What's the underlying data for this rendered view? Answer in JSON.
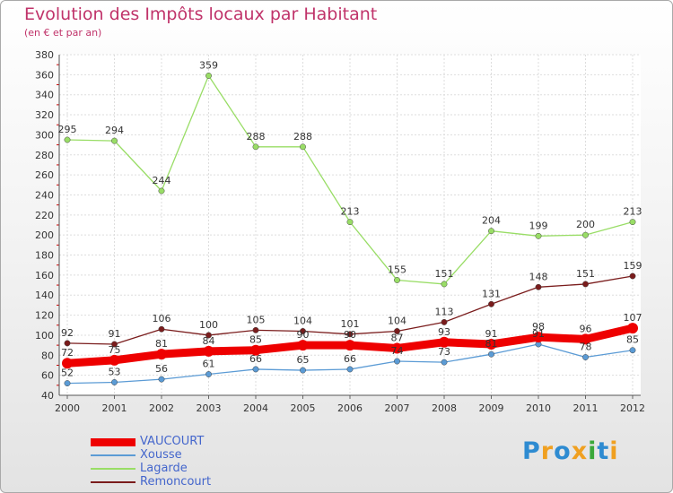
{
  "title": "Evolution des Impôts locaux par Habitant",
  "subtitle": "(en € et par an)",
  "logo": {
    "text": "Proxiti",
    "letters": [
      "P",
      "r",
      "o",
      "x",
      "i",
      "t",
      "i"
    ],
    "colors": [
      "#2e8bd1",
      "#f0a020",
      "#2e8bd1",
      "#f0a020",
      "#3aa83a",
      "#2e8bd1",
      "#f0a020"
    ]
  },
  "chart_data": {
    "type": "line",
    "title": "Evolution des Impôts locaux par Habitant",
    "subtitle": "(en € et par an)",
    "x": [
      "2000",
      "2001",
      "2002",
      "2003",
      "2004",
      "2005",
      "2006",
      "2007",
      "2008",
      "2009",
      "2010",
      "2011",
      "2012"
    ],
    "ylim": [
      40,
      380
    ],
    "yticks": [
      40,
      60,
      80,
      100,
      120,
      140,
      160,
      180,
      200,
      220,
      240,
      260,
      280,
      300,
      320,
      340,
      360,
      380
    ],
    "grid": true,
    "legend": "bottom-left",
    "series": [
      {
        "name": "VAUCOURT",
        "color": "#ee0000",
        "width": "thick",
        "values": [
          72,
          75,
          81,
          84,
          85,
          90,
          90,
          87,
          93,
          91,
          98,
          96,
          107
        ]
      },
      {
        "name": "Xousse",
        "color": "#5b9bd5",
        "width": "thin",
        "values": [
          52,
          53,
          56,
          61,
          66,
          65,
          66,
          74,
          73,
          81,
          91,
          78,
          85
        ]
      },
      {
        "name": "Lagarde",
        "color": "#99dd66",
        "width": "thin",
        "values": [
          295,
          294,
          244,
          359,
          288,
          288,
          213,
          155,
          151,
          204,
          199,
          200,
          213
        ]
      },
      {
        "name": "Remoncourt",
        "color": "#7a1c1c",
        "width": "thin",
        "values": [
          92,
          91,
          106,
          100,
          105,
          104,
          101,
          104,
          113,
          131,
          148,
          151,
          159
        ]
      }
    ]
  }
}
